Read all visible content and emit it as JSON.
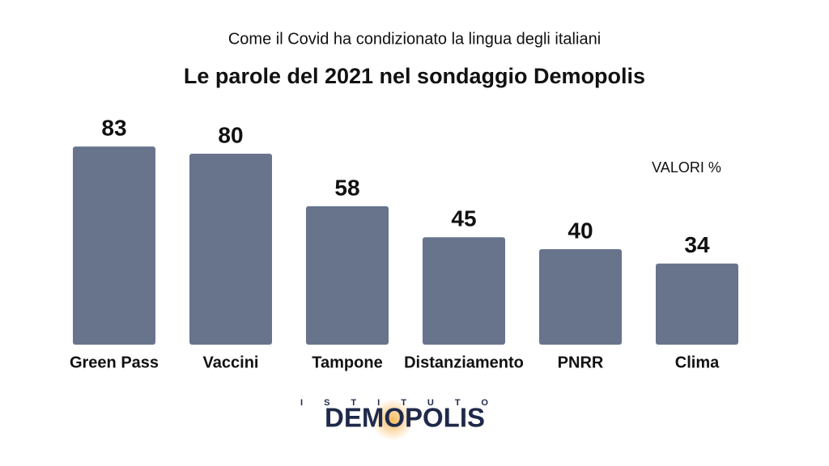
{
  "chart_data": {
    "type": "bar",
    "subtitle": "Come il Covid ha condizionato la lingua degli italiani",
    "title": "Le parole del 2021 nel sondaggio Demopolis",
    "annotation": "VALORI %",
    "categories": [
      "Green Pass",
      "Vaccini",
      "Tampone",
      "Distanziamento",
      "PNRR",
      "Clima"
    ],
    "values": [
      83,
      80,
      58,
      45,
      40,
      34
    ],
    "color": "#67748c"
  },
  "logo": {
    "top": "ISTITUTO",
    "name": "DEMOPOLIS"
  }
}
